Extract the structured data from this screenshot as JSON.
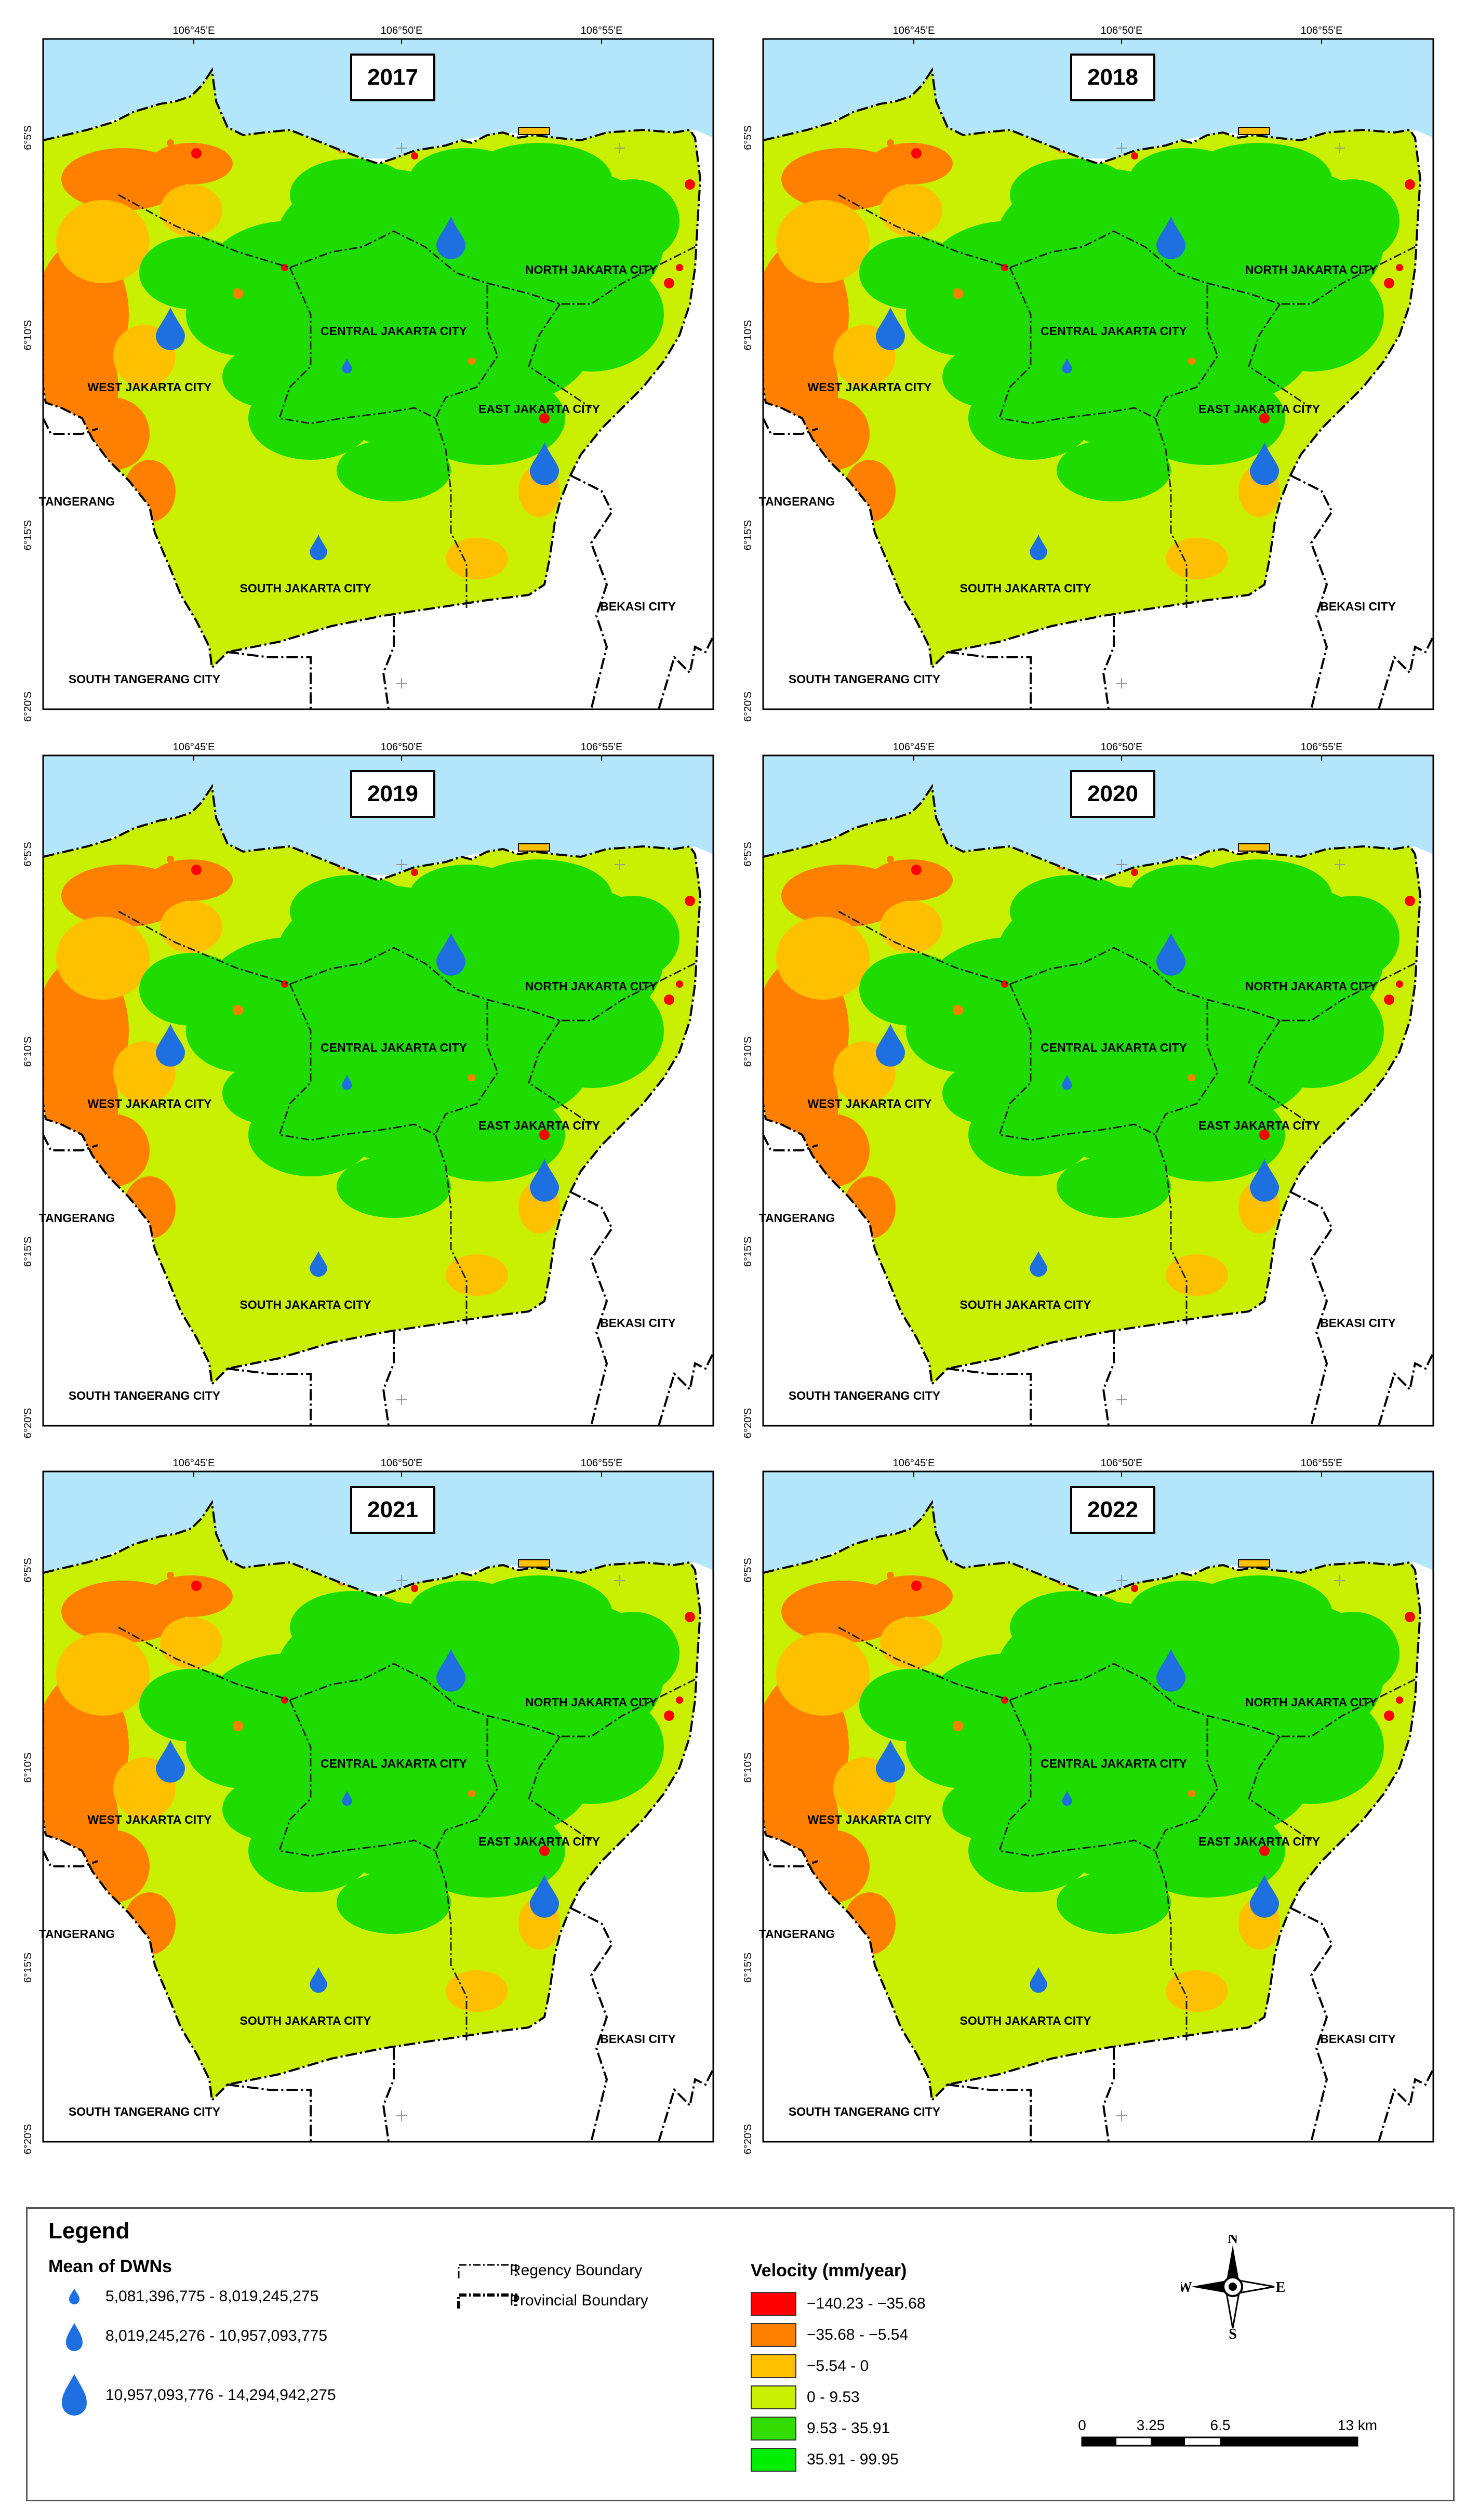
{
  "panels": [
    {
      "year": "2017"
    },
    {
      "year": "2018"
    },
    {
      "year": "2019"
    },
    {
      "year": "2020"
    },
    {
      "year": "2021"
    },
    {
      "year": "2022"
    }
  ],
  "lon_ticks": [
    "106°45'E",
    "106°50'E",
    "106°55'E"
  ],
  "lat_ticks": [
    "6°5'S",
    "6°10'S",
    "6°15'S",
    "6°20'S"
  ],
  "regions": {
    "north": "NORTH JAKARTA CITY",
    "central": "CENTRAL JAKARTA CITY",
    "west": "WEST JAKARTA CITY",
    "east": "EAST JAKARTA CITY",
    "south": "SOUTH JAKARTA CITY",
    "tangerang": "TANGERANG",
    "south_tangerang": "SOUTH TANGERANG CITY",
    "bekasi": "BEKASI CITY"
  },
  "legend": {
    "title": "Legend",
    "dwn_title": "Mean of DWNs",
    "dwn_classes": [
      "5,081,396,775 - 8,019,245,275",
      "8,019,245,276 - 10,957,093,775",
      "10,957,093,776 - 14,294,942,275"
    ],
    "boundaries": [
      "Regency Boundary",
      "Provincial Boundary"
    ],
    "velocity_title": "Velocity (mm/year)",
    "velocity_classes": [
      {
        "label": "−140.23 - −35.68",
        "color": "#ff0000"
      },
      {
        "label": "−35.68 - −5.54",
        "color": "#ff8000"
      },
      {
        "label": "−5.54 - 0",
        "color": "#ffc000"
      },
      {
        "label": "0 - 9.53",
        "color": "#c8f000"
      },
      {
        "label": "9.53 - 35.91",
        "color": "#33dd00"
      },
      {
        "label": "35.91 - 99.95",
        "color": "#00ee00"
      }
    ],
    "scale_labels": [
      "0",
      "3.25",
      "6.5",
      "13 km"
    ],
    "north_arrow": {
      "n": "N",
      "s": "S",
      "e": "E",
      "w": "W"
    }
  },
  "colors": {
    "sea": "#b3e6fa",
    "land_base": "#c8f000",
    "green": "#1edc00",
    "orange": "#ff8000",
    "red": "#ff0000",
    "yellow": "#ffc000",
    "drop": "#1e6fe0"
  }
}
